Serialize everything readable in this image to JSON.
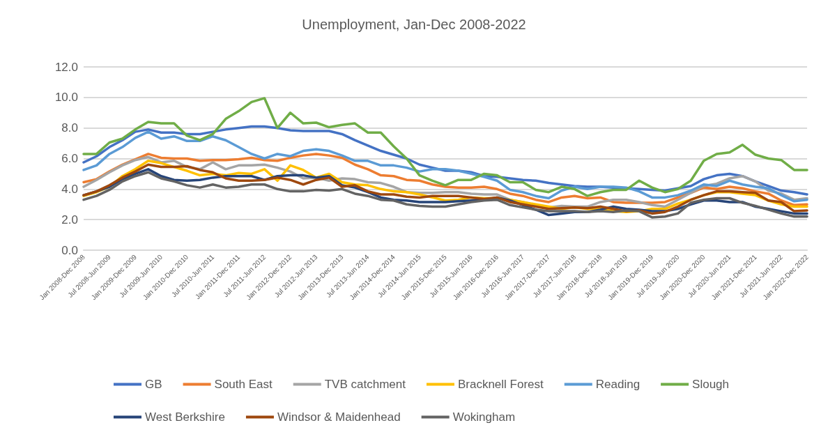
{
  "chart_data": {
    "type": "line",
    "title": "Unemployment, Jan-Dec 2008-2022",
    "categories": [
      "Jan 2008-Dec 2008",
      null,
      "Jul 2008-Jun 2009",
      null,
      "Jan 2009-Dec 2009",
      null,
      "Jul 2009-Jun 2010",
      null,
      "Jan 2010-Dec 2010",
      null,
      "Jul 2010-Jun 2011",
      null,
      "Jan 2011-Dec 2011",
      null,
      "Jul 2011-Jun 2012",
      null,
      "Jan 2012-Dec 2012",
      null,
      "Jul 2012-Jun 2013",
      null,
      "Jan 2013-Dec 2013",
      null,
      "Jul 2013-Jun 2014",
      null,
      "Jan 2014-Dec 2014",
      null,
      "Jul 2014-Jun 2015",
      null,
      "Jan 2015-Dec 2015",
      null,
      "Jul 2015-Jun 2016",
      null,
      "Jan 2016-Dec 2016",
      null,
      "Jul 2016-Jun 2017",
      null,
      "Jan 2017-Dec 2017",
      null,
      "Jul 2017-Jun 2018",
      null,
      "Jan 2018-Dec 2018",
      null,
      "Jul 2018-Jun 2019",
      null,
      "Jan 2019-Dec 2019",
      null,
      "Jul 2019-Jun 2020",
      null,
      "Jan 2020-Dec 2020",
      null,
      "Jul 2020-Jun 2021",
      null,
      "Jan 2021-Dec 2021",
      null,
      "Jul 2021-Jun 2022",
      null,
      "Jan 2022-Dec 2022"
    ],
    "ylim": [
      0,
      12
    ],
    "yticks": [
      {
        "value": 0,
        "label": "0.0"
      },
      {
        "value": 2,
        "label": "2.0"
      },
      {
        "value": 4,
        "label": "4.0"
      },
      {
        "value": 6,
        "label": "6.0"
      },
      {
        "value": 8,
        "label": "8.0"
      },
      {
        "value": 10,
        "label": "10.0"
      },
      {
        "value": 12,
        "label": "12.0"
      }
    ],
    "grid": "y",
    "legend": "bottom",
    "marker": "none",
    "line_style": "solid",
    "series": [
      {
        "name": "GB",
        "color": "#4472c4",
        "values": [
          5.75,
          6.15,
          6.75,
          7.2,
          7.75,
          7.9,
          7.7,
          7.7,
          7.6,
          7.6,
          7.75,
          7.9,
          8.0,
          8.1,
          8.1,
          8.0,
          7.85,
          7.8,
          7.8,
          7.8,
          7.6,
          7.2,
          6.85,
          6.5,
          6.25,
          6.0,
          5.6,
          5.4,
          5.2,
          5.2,
          5.1,
          4.85,
          4.8,
          4.7,
          4.6,
          4.55,
          4.4,
          4.3,
          4.2,
          4.15,
          4.15,
          4.1,
          4.05,
          4.0,
          3.95,
          3.9,
          4.05,
          4.2,
          4.65,
          4.9,
          5.0,
          4.85,
          4.5,
          4.2,
          3.9,
          3.8,
          3.65
        ]
      },
      {
        "name": "South East",
        "color": "#ed7d31",
        "values": [
          4.45,
          4.65,
          5.15,
          5.6,
          5.95,
          6.3,
          6.05,
          6.0,
          6.0,
          5.85,
          5.9,
          5.9,
          5.95,
          6.05,
          5.9,
          5.85,
          6.05,
          6.2,
          6.3,
          6.2,
          6.05,
          5.6,
          5.3,
          4.9,
          4.85,
          4.6,
          4.55,
          4.3,
          4.15,
          4.1,
          4.1,
          4.15,
          4.0,
          3.7,
          3.55,
          3.3,
          3.15,
          3.45,
          3.55,
          3.4,
          3.45,
          3.15,
          3.1,
          3.1,
          3.1,
          3.15,
          3.45,
          3.75,
          4.1,
          4.0,
          4.15,
          4.05,
          3.85,
          3.7,
          3.25,
          2.95,
          3.0
        ]
      },
      {
        "name": "TVB catchment",
        "color": "#a5a5a5",
        "values": [
          4.15,
          4.6,
          5.1,
          5.55,
          5.9,
          6.1,
          5.75,
          5.85,
          5.45,
          5.3,
          5.75,
          5.3,
          5.55,
          5.55,
          5.6,
          5.4,
          5.15,
          4.7,
          4.75,
          4.55,
          4.7,
          4.65,
          4.45,
          4.4,
          4.15,
          3.8,
          3.75,
          3.75,
          3.8,
          3.8,
          3.7,
          3.65,
          3.65,
          3.3,
          3.15,
          2.95,
          2.8,
          2.9,
          2.85,
          2.85,
          3.15,
          3.3,
          3.3,
          3.15,
          2.95,
          2.85,
          3.3,
          3.75,
          4.2,
          4.35,
          4.7,
          4.85,
          4.5,
          3.9,
          3.7,
          3.3,
          3.4
        ]
      },
      {
        "name": "Bracknell Forest",
        "color": "#ffc000",
        "values": [
          3.55,
          3.8,
          4.15,
          4.85,
          5.3,
          5.85,
          5.7,
          5.45,
          5.2,
          4.9,
          5.0,
          4.9,
          5.05,
          5.0,
          5.3,
          4.55,
          5.55,
          5.25,
          4.75,
          5.0,
          4.45,
          4.3,
          4.25,
          4.0,
          3.85,
          3.8,
          3.65,
          3.45,
          3.25,
          3.3,
          3.45,
          3.4,
          3.4,
          3.3,
          3.15,
          3.0,
          2.85,
          2.7,
          2.8,
          2.7,
          2.7,
          2.55,
          2.5,
          2.55,
          2.7,
          2.7,
          3.05,
          3.3,
          3.6,
          3.8,
          3.8,
          3.7,
          3.6,
          3.25,
          3.0,
          2.85,
          2.85
        ]
      },
      {
        "name": "Reading",
        "color": "#5b9bd5",
        "values": [
          5.25,
          5.55,
          6.3,
          6.75,
          7.35,
          7.75,
          7.3,
          7.45,
          7.15,
          7.15,
          7.45,
          7.2,
          6.75,
          6.3,
          6.0,
          6.3,
          6.15,
          6.5,
          6.6,
          6.5,
          6.2,
          5.85,
          5.85,
          5.55,
          5.55,
          5.4,
          5.15,
          5.3,
          5.3,
          5.2,
          5.0,
          4.8,
          4.55,
          3.95,
          3.8,
          3.55,
          3.4,
          3.9,
          4.15,
          4.0,
          4.15,
          4.15,
          4.1,
          3.85,
          3.45,
          3.45,
          3.6,
          3.9,
          4.3,
          4.2,
          4.55,
          4.3,
          4.15,
          4.05,
          3.6,
          3.2,
          3.3
        ]
      },
      {
        "name": "Slough",
        "color": "#70ad47",
        "values": [
          6.3,
          6.3,
          7.05,
          7.3,
          7.9,
          8.4,
          8.3,
          8.3,
          7.5,
          7.2,
          7.6,
          8.6,
          9.1,
          9.7,
          9.95,
          8.0,
          9.0,
          8.3,
          8.35,
          8.05,
          8.2,
          8.3,
          7.7,
          7.7,
          6.8,
          6.0,
          4.9,
          4.55,
          4.25,
          4.6,
          4.6,
          5.0,
          4.9,
          4.45,
          4.45,
          3.95,
          3.8,
          4.15,
          4.0,
          3.55,
          3.8,
          3.95,
          3.95,
          4.55,
          4.1,
          3.8,
          4.0,
          4.55,
          5.85,
          6.3,
          6.4,
          6.9,
          6.25,
          6.0,
          5.9,
          5.25,
          5.25
        ]
      },
      {
        "name": "West Berkshire",
        "color": "#264478",
        "values": [
          3.6,
          3.85,
          4.15,
          4.65,
          5.0,
          5.3,
          4.85,
          4.6,
          4.55,
          4.6,
          4.75,
          4.85,
          4.85,
          4.85,
          4.6,
          4.85,
          4.9,
          4.9,
          4.75,
          4.85,
          4.25,
          4.1,
          3.8,
          3.45,
          3.3,
          3.25,
          3.15,
          3.15,
          3.15,
          3.2,
          3.25,
          3.3,
          3.45,
          3.25,
          2.95,
          2.65,
          2.3,
          2.4,
          2.5,
          2.5,
          2.65,
          2.85,
          2.7,
          2.65,
          2.55,
          2.55,
          2.7,
          3.0,
          3.25,
          3.25,
          3.15,
          3.15,
          2.85,
          2.7,
          2.55,
          2.4,
          2.4
        ]
      },
      {
        "name": "Windsor & Maidenhead",
        "color": "#9e480e",
        "values": [
          3.6,
          3.85,
          4.25,
          4.75,
          5.15,
          5.6,
          5.45,
          5.45,
          5.5,
          5.25,
          5.1,
          4.7,
          4.55,
          4.55,
          4.6,
          4.75,
          4.6,
          4.3,
          4.6,
          4.75,
          4.15,
          4.25,
          3.85,
          3.65,
          3.65,
          3.5,
          3.45,
          3.55,
          3.55,
          3.55,
          3.45,
          3.35,
          3.45,
          3.15,
          3.0,
          2.85,
          2.7,
          2.75,
          2.8,
          2.75,
          2.85,
          2.7,
          2.55,
          2.6,
          2.4,
          2.5,
          2.85,
          3.3,
          3.6,
          3.85,
          3.85,
          3.8,
          3.75,
          3.25,
          3.15,
          2.55,
          2.6
        ]
      },
      {
        "name": "Wokingham",
        "color": "#636363",
        "values": [
          3.3,
          3.55,
          3.95,
          4.5,
          4.85,
          5.1,
          4.7,
          4.5,
          4.25,
          4.1,
          4.3,
          4.1,
          4.15,
          4.3,
          4.3,
          4.0,
          3.85,
          3.85,
          3.95,
          3.9,
          4.0,
          3.7,
          3.55,
          3.3,
          3.25,
          3.0,
          2.9,
          2.85,
          2.85,
          3.0,
          3.15,
          3.25,
          3.3,
          2.95,
          2.8,
          2.65,
          2.55,
          2.55,
          2.55,
          2.5,
          2.55,
          2.5,
          2.6,
          2.55,
          2.15,
          2.2,
          2.4,
          3.1,
          3.3,
          3.4,
          3.4,
          3.1,
          2.9,
          2.65,
          2.4,
          2.2,
          2.2
        ]
      }
    ]
  }
}
